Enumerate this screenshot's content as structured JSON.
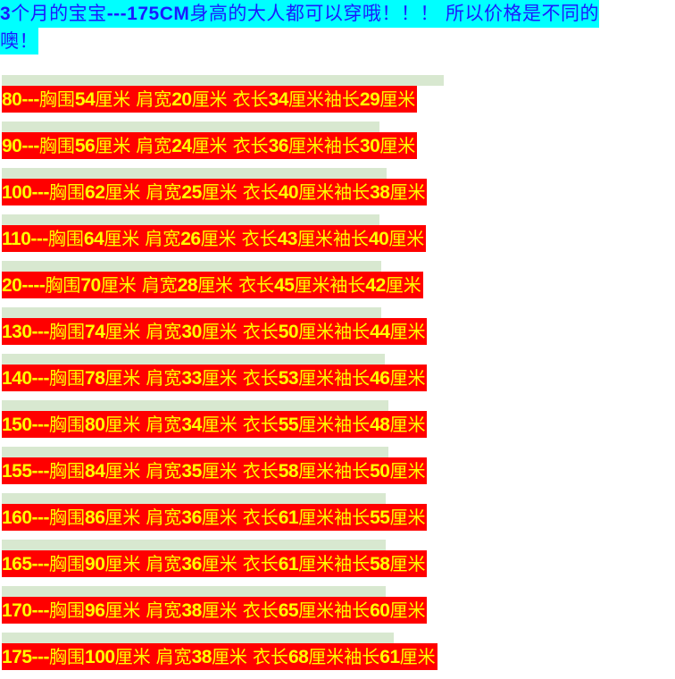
{
  "header": {
    "line1_parts": [
      "3",
      "个月的宝宝",
      "---175CM",
      "身高的大人都可以穿哦！！！ 所以价格是不同的"
    ],
    "line2": "噢！"
  },
  "colors": {
    "header_bg": "#00ffff",
    "header_text": "#1a1aff",
    "row_bg": "#ff0000",
    "row_text": "#ffff00",
    "row_shade": "#d8e8d0"
  },
  "size_rows": [
    {
      "size": "80---",
      "chest": "54",
      "shoulder": "20",
      "length": "34",
      "sleeve": "29"
    },
    {
      "size": "90---",
      "chest": "56",
      "shoulder": "24",
      "length": "36",
      "sleeve": "30"
    },
    {
      "size": "100---",
      "chest": "62",
      "shoulder": "25",
      "length": "40",
      "sleeve": "38"
    },
    {
      "size": "110---",
      "chest": "64",
      "shoulder": "26",
      "length": "43",
      "sleeve": "40"
    },
    {
      "size": "20----",
      "chest": "70",
      "shoulder": "28",
      "length": "45",
      "sleeve": "42"
    },
    {
      "size": "130---",
      "chest": "74",
      "shoulder": "30",
      "length": "50",
      "sleeve": "44"
    },
    {
      "size": "140---",
      "chest": "78",
      "shoulder": "33",
      "length": "53",
      "sleeve": "46"
    },
    {
      "size": "150---",
      "chest": "80",
      "shoulder": "34",
      "length": "55",
      "sleeve": "48"
    },
    {
      "size": "155---",
      "chest": "84",
      "shoulder": "35",
      "length": "58",
      "sleeve": "50"
    },
    {
      "size": "160---",
      "chest": "86",
      "shoulder": "36",
      "length": "61",
      "sleeve": "55"
    },
    {
      "size": "165---",
      "chest": "90",
      "shoulder": "36",
      "length": "61",
      "sleeve": "58"
    },
    {
      "size": "170---",
      "chest": "96",
      "shoulder": "38",
      "length": "65",
      "sleeve": "60"
    },
    {
      "size": "175---",
      "chest": "100",
      "shoulder": "38",
      "length": "68",
      "sleeve": "61"
    }
  ],
  "labels": {
    "chest": "胸围",
    "shoulder": "肩宽",
    "length": "衣长",
    "sleeve": "袖长",
    "unit": "厘米"
  }
}
